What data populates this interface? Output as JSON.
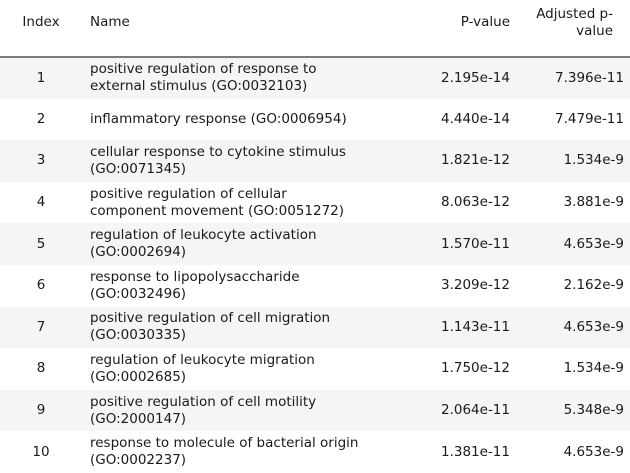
{
  "table": {
    "headers": {
      "index": "Index",
      "name": "Name",
      "pvalue": "P-value",
      "adjusted": "Adjusted p-value"
    },
    "rows": [
      {
        "index": "1",
        "name": "positive regulation of response to external stimulus (GO:0032103)",
        "pvalue": "2.195e-14",
        "adjusted": "7.396e-11"
      },
      {
        "index": "2",
        "name": "inflammatory response (GO:0006954)",
        "pvalue": "4.440e-14",
        "adjusted": "7.479e-11"
      },
      {
        "index": "3",
        "name": "cellular response to cytokine stimulus (GO:0071345)",
        "pvalue": "1.821e-12",
        "adjusted": "1.534e-9"
      },
      {
        "index": "4",
        "name": "positive regulation of cellular component movement (GO:0051272)",
        "pvalue": "8.063e-12",
        "adjusted": "3.881e-9"
      },
      {
        "index": "5",
        "name": "regulation of leukocyte activation (GO:0002694)",
        "pvalue": "1.570e-11",
        "adjusted": "4.653e-9"
      },
      {
        "index": "6",
        "name": "response to lipopolysaccharide (GO:0032496)",
        "pvalue": "3.209e-12",
        "adjusted": "2.162e-9"
      },
      {
        "index": "7",
        "name": "positive regulation of cell migration (GO:0030335)",
        "pvalue": "1.143e-11",
        "adjusted": "4.653e-9"
      },
      {
        "index": "8",
        "name": "regulation of leukocyte migration (GO:0002685)",
        "pvalue": "1.750e-12",
        "adjusted": "1.534e-9"
      },
      {
        "index": "9",
        "name": "positive regulation of cell motility (GO:2000147)",
        "pvalue": "2.064e-11",
        "adjusted": "5.348e-9"
      },
      {
        "index": "10",
        "name": "response to molecule of bacterial origin (GO:0002237)",
        "pvalue": "1.381e-11",
        "adjusted": "4.653e-9"
      }
    ]
  }
}
